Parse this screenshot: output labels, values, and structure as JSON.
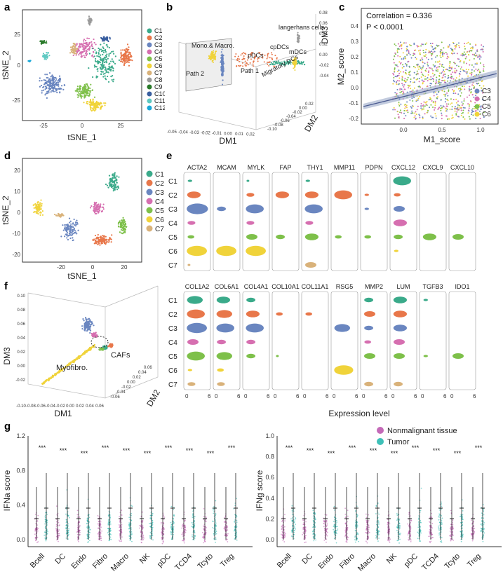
{
  "panels": {
    "a": {
      "label": "a",
      "xlabel": "tSNE_1",
      "ylabel": "tSNE_2",
      "xticks": [
        "-25",
        "0",
        "25"
      ],
      "yticks": [
        "25",
        "0",
        "-25"
      ],
      "legend": [
        "C1",
        "C2",
        "C3",
        "C4",
        "C5",
        "C6",
        "C7",
        "C8",
        "C9",
        "C10",
        "C11",
        "C12"
      ],
      "colors": [
        "#3aaa8a",
        "#e8774a",
        "#6a86c0",
        "#d66fb0",
        "#7ec04a",
        "#f0d33a",
        "#d9b27a",
        "#9a9a9a",
        "#2a7a2a",
        "#3a5fa0",
        "#5ec9c2",
        "#1aa8d8"
      ]
    },
    "b": {
      "label": "b",
      "xlabel": "DM1",
      "ylabel": "DM3",
      "zlabel": "DM2",
      "annotations": [
        "Mono.& Macro.",
        "Path 2",
        "Path 1",
        "pDCs",
        "cpDCs",
        "mDCs",
        "Migratory DCs",
        "langerhans cells"
      ],
      "xticks": [
        "-0.05",
        "-0.04",
        "-0.03",
        "-0.02",
        "-0.01",
        "0.00",
        "0.01",
        "0.02"
      ],
      "zticks": [
        "0.02",
        "0.00",
        "-0.02",
        "-0.04",
        "-0.06",
        "-0.08",
        "-0.10"
      ],
      "yticks": [
        "0.08",
        "0.06",
        "0.04",
        "0.02",
        "0.00",
        "-0.02",
        "-0.04"
      ]
    },
    "c": {
      "label": "c",
      "xlabel": "M1_score",
      "ylabel": "M2_score",
      "correlation": "Correlation = 0.336",
      "pvalue": "P < 0.0001",
      "xticks": [
        "0.0",
        "0.5",
        "1.0"
      ],
      "yticks": [
        "0.4",
        "0.3",
        "0.2",
        "0.1",
        "0.0",
        "-0.1",
        "-0.2"
      ],
      "legend": [
        "C3",
        "C4",
        "C5",
        "C6"
      ]
    },
    "d": {
      "label": "d",
      "xlabel": "tSNE_1",
      "ylabel": "tSNE_2",
      "xticks": [
        "-20",
        "0",
        "20"
      ],
      "yticks": [
        "20",
        "10",
        "0",
        "-10",
        "-20"
      ],
      "legend": [
        "C1",
        "C2",
        "C3",
        "C4",
        "C5",
        "C6",
        "C7"
      ],
      "colors": [
        "#3aaa8a",
        "#e8774a",
        "#6a86c0",
        "#d66fb0",
        "#7ec04a",
        "#f0d33a",
        "#d9b27a"
      ]
    },
    "e": {
      "label": "e",
      "xlabel": "Expression level",
      "row_labels": [
        "C1",
        "C2",
        "C3",
        "C4",
        "C5",
        "C6",
        "C7"
      ],
      "genes_top": [
        "ACTA2",
        "MCAM",
        "MYLK",
        "FAP",
        "THY1",
        "MMP11",
        "PDPN",
        "CXCL12",
        "CXCL9",
        "CXCL10"
      ],
      "genes_bottom": [
        "COL1A2",
        "COL6A1",
        "COL4A1",
        "COL10A1",
        "COL11A1",
        "RSG5",
        "MMP2",
        "LUM",
        "TGFB3",
        "IDO1"
      ],
      "xtick0": "0",
      "xtick6": "6"
    },
    "f": {
      "label": "f",
      "xlabel": "DM1",
      "ylabel": "DM3",
      "zlabel": "DM2",
      "annotations": [
        "Myofibro.",
        "CAFs"
      ],
      "xticks": [
        "-0.10",
        "-0.08",
        "-0.06",
        "-0.04",
        "-0.02",
        "0.00",
        "0.02",
        "0.04",
        "0.06"
      ],
      "yticks": [
        "0.10",
        "0.08",
        "0.06",
        "0.04",
        "0.02",
        "0.00",
        "-0.02"
      ],
      "zticks": [
        "0.06",
        "0.04",
        "0.02",
        "0.00",
        "-0.02",
        "-0.04",
        "-0.06"
      ]
    },
    "g": {
      "label": "g",
      "legend": [
        "Nonmalignant tissue",
        "Tumor"
      ],
      "colors": {
        "normal": "#c46ab8",
        "tumor": "#3ec0b8"
      },
      "categories": [
        "Bcell",
        "DC",
        "Endo",
        "Fibro",
        "Macro",
        "NK",
        "pDC",
        "TCD4",
        "Tcyto",
        "Treg"
      ],
      "sig": "***",
      "left": {
        "ylabel": "IFNa score",
        "yticks": [
          "1.2",
          "0.8",
          "0.4",
          "0.0"
        ]
      },
      "right": {
        "ylabel": "IFNg score",
        "yticks": [
          "1.0",
          "0.8",
          "0.6",
          "0.4",
          "0.2",
          "0.0"
        ]
      }
    }
  }
}
